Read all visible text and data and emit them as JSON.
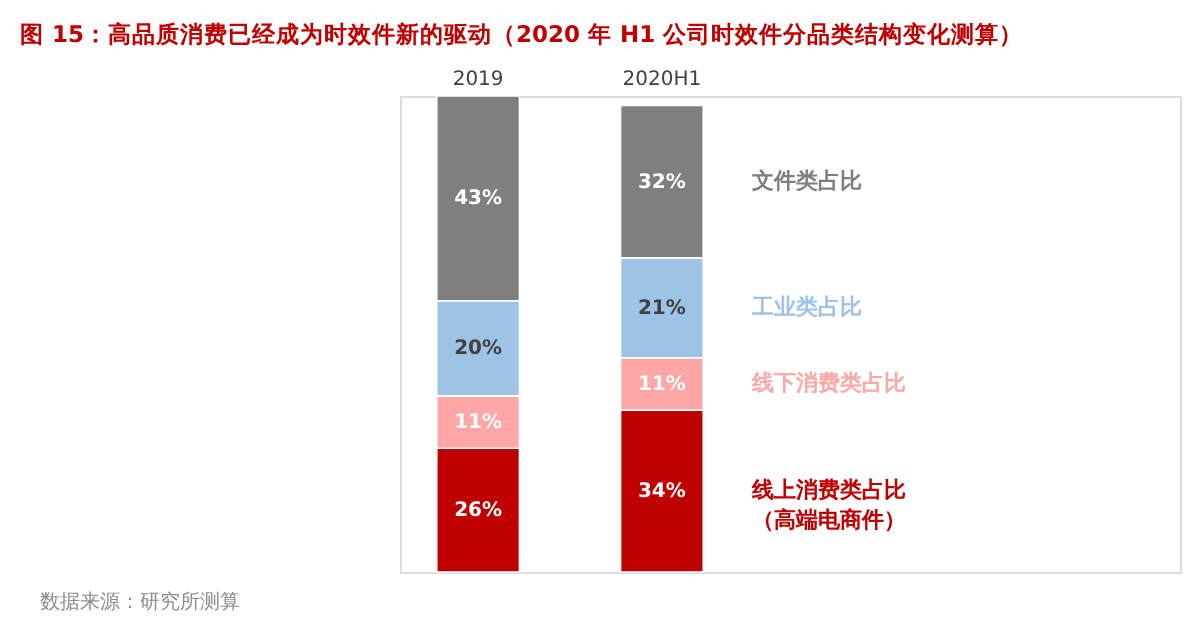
{
  "chart_data": {
    "type": "bar",
    "stacked": true,
    "legend": false,
    "title": "图 15：高品质消费已经成为时效件新的驱动（2020 年 H1 公司时效件分品类结构变化测算）",
    "categories": [
      "2019",
      "2020H1"
    ],
    "series": [
      {
        "name": "线上消费类占比（高端电商件）",
        "color": "#c00000",
        "values": [
          26,
          34
        ],
        "value_labels": [
          "26%",
          "34%"
        ]
      },
      {
        "name": "线下消费类占比",
        "color": "#ffa7a7",
        "values": [
          11,
          11
        ],
        "value_labels": [
          "11%",
          "11%"
        ]
      },
      {
        "name": "工业类占比",
        "color": "#9dc3e6",
        "values": [
          20,
          21
        ],
        "value_labels": [
          "20%",
          "21%"
        ]
      },
      {
        "name": "文件类占比",
        "color": "#7f7f7f",
        "values": [
          43,
          32
        ],
        "value_labels": [
          "43%",
          "32%"
        ]
      }
    ],
    "annotations": [
      "数据来源：研究所测算"
    ]
  }
}
